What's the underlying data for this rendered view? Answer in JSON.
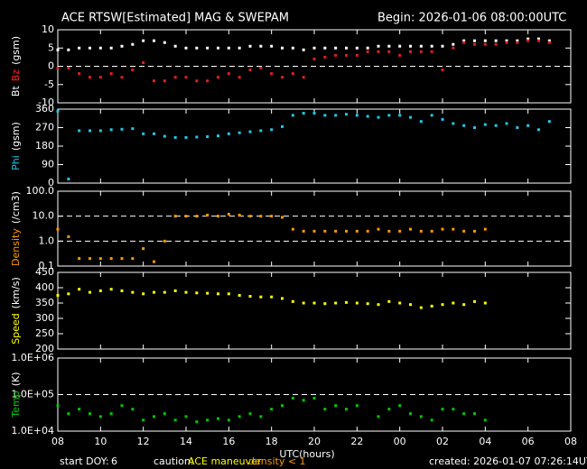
{
  "header": {
    "title": "ACE RTSW[Estimated] MAG & SWEPAM",
    "begin": "Begin: 2026-01-06 08:00:00UTC"
  },
  "xaxis": {
    "label": "UTC(hours)",
    "xlim": [
      0,
      24
    ],
    "xticks": [
      {
        "value": 0,
        "label": "08"
      },
      {
        "value": 2,
        "label": "10"
      },
      {
        "value": 4,
        "label": "12"
      },
      {
        "value": 6,
        "label": "14"
      },
      {
        "value": 8,
        "label": "16"
      },
      {
        "value": 10,
        "label": "18"
      },
      {
        "value": 12,
        "label": "20"
      },
      {
        "value": 14,
        "label": "22"
      },
      {
        "value": 16,
        "label": "00"
      },
      {
        "value": 18,
        "label": "02"
      },
      {
        "value": 20,
        "label": "04"
      },
      {
        "value": 22,
        "label": "06"
      },
      {
        "value": 24,
        "label": "08"
      }
    ]
  },
  "footer": {
    "doy_label": "start DOY:",
    "doy": "6",
    "caution": "caution:",
    "maneuver": "ACE maneuver",
    "density_note": "density < 1",
    "created": "created: 2026-01-07 07:26:14UTC"
  },
  "chart_data": [
    {
      "type": "scatter",
      "ylabel": [
        {
          "text": "Bt",
          "color": "#ffffff"
        },
        {
          "text": "Bz",
          "color": "#ff2020"
        },
        {
          "text": "(gsm)",
          "color": "#ffffff"
        }
      ],
      "x": [
        0,
        0.5,
        1,
        1.5,
        2,
        2.5,
        3,
        3.5,
        4,
        4.5,
        5,
        5.5,
        6,
        6.5,
        7,
        7.5,
        8,
        8.5,
        9,
        9.5,
        10,
        10.5,
        11,
        11.5,
        12,
        12.5,
        13,
        13.5,
        14,
        14.5,
        15,
        15.5,
        16,
        16.5,
        17,
        17.5,
        18,
        18.5,
        19,
        19.5,
        20,
        20.5,
        21,
        21.5,
        22,
        22.5,
        23
      ],
      "series": [
        {
          "name": "Bt",
          "color": "#ffffff",
          "values": [
            4.5,
            4.5,
            5,
            5,
            5,
            5,
            5.5,
            6,
            7,
            7,
            6.5,
            5.5,
            5,
            5,
            5,
            5,
            5,
            5,
            5.5,
            5.5,
            5.5,
            5,
            5,
            4.5,
            5,
            5,
            5,
            5,
            5,
            5,
            5.5,
            5.5,
            5.5,
            5.5,
            5.5,
            5.5,
            5.5,
            6,
            7,
            7,
            7,
            7,
            7,
            7,
            7.5,
            7.5,
            7
          ]
        },
        {
          "name": "Bz",
          "color": "#e02020",
          "values": [
            -0.5,
            -0.5,
            -2,
            -3,
            -3,
            -2,
            -3,
            -1,
            1,
            -4,
            -4,
            -3,
            -3,
            -4,
            -4,
            -3,
            -2,
            -3,
            -1,
            -0.5,
            -2,
            -3,
            -2,
            -3,
            2,
            2.5,
            3,
            3,
            3,
            4,
            4,
            4,
            3,
            4,
            4,
            4,
            -1,
            5,
            6.5,
            6,
            6,
            6,
            6.5,
            6.5,
            7,
            7,
            6.5
          ]
        }
      ],
      "ylim": [
        -10,
        10
      ],
      "yticks": [
        -10,
        -5,
        0,
        5,
        10
      ],
      "log": false,
      "reference_lines": [
        0
      ]
    },
    {
      "type": "scatter",
      "ylabel": [
        {
          "text": "Phi",
          "color": "#20c8e8"
        },
        {
          "text": "(gsm)",
          "color": "#ffffff"
        }
      ],
      "x": [
        0,
        0.5,
        1,
        1.5,
        2,
        2.5,
        3,
        3.5,
        4,
        4.5,
        5,
        5.5,
        6,
        6.5,
        7,
        7.5,
        8,
        8.5,
        9,
        9.5,
        10,
        10.5,
        11,
        11.5,
        12,
        12.5,
        13,
        13.5,
        14,
        14.5,
        15,
        15.5,
        16,
        16.5,
        17,
        17.5,
        18,
        18.5,
        19,
        19.5,
        20,
        20.5,
        21,
        21.5,
        22,
        22.5,
        23
      ],
      "series": [
        {
          "name": "Phi",
          "color": "#20c8e8",
          "values": [
            350,
            20,
            255,
            255,
            255,
            260,
            262,
            265,
            240,
            240,
            228,
            222,
            222,
            224,
            226,
            230,
            240,
            245,
            250,
            255,
            260,
            275,
            330,
            340,
            340,
            330,
            330,
            335,
            330,
            325,
            320,
            330,
            330,
            320,
            300,
            330,
            310,
            290,
            280,
            270,
            285,
            280,
            290,
            270,
            280,
            260,
            300
          ]
        }
      ],
      "ylim": [
        0,
        360
      ],
      "yticks": [
        0,
        90,
        180,
        270,
        360
      ],
      "log": false,
      "reference_lines": []
    },
    {
      "type": "scatter",
      "ylabel": [
        {
          "text": "Density",
          "color": "#ff9900"
        },
        {
          "text": "(/cm3)",
          "color": "#ffffff"
        }
      ],
      "x": [
        0,
        0.5,
        1,
        1.5,
        2,
        2.5,
        3,
        3.5,
        4,
        4.5,
        5,
        5.5,
        6,
        6.5,
        7,
        7.5,
        8,
        8.5,
        9,
        9.5,
        10,
        10.5,
        11,
        11.5,
        12,
        12.5,
        13,
        13.5,
        14,
        14.5,
        15,
        15.5,
        16,
        16.5,
        17,
        17.5,
        18,
        18.5,
        19,
        19.5,
        20
      ],
      "series": [
        {
          "name": "Density",
          "color": "#ff9900",
          "values": [
            3,
            1.5,
            0.2,
            0.2,
            0.2,
            0.2,
            0.2,
            0.2,
            0.5,
            0.15,
            1,
            10,
            10,
            10,
            11,
            10,
            12,
            11,
            10,
            10,
            10,
            9,
            3,
            2.5,
            2.5,
            2.5,
            2.5,
            2.5,
            2.5,
            2.5,
            3,
            2.5,
            2.5,
            3,
            2.5,
            2.5,
            3,
            3,
            2.5,
            2.5,
            3
          ]
        }
      ],
      "ylim": [
        0.1,
        100
      ],
      "yticks": [
        0.1,
        {
          "value": 1,
          "label": "1.0"
        },
        {
          "value": 10,
          "label": "10.0"
        },
        {
          "value": 100,
          "label": "100.0"
        }
      ],
      "log": true,
      "reference_lines": [
        1,
        10
      ]
    },
    {
      "type": "scatter",
      "ylabel": [
        {
          "text": "Speed",
          "color": "#ffff00"
        },
        {
          "text": "(km/s)",
          "color": "#ffffff"
        }
      ],
      "x": [
        0,
        0.5,
        1,
        1.5,
        2,
        2.5,
        3,
        3.5,
        4,
        4.5,
        5,
        5.5,
        6,
        6.5,
        7,
        7.5,
        8,
        8.5,
        9,
        9.5,
        10,
        10.5,
        11,
        11.5,
        12,
        12.5,
        13,
        13.5,
        14,
        14.5,
        15,
        15.5,
        16,
        16.5,
        17,
        17.5,
        18,
        18.5,
        19,
        19.5,
        20
      ],
      "series": [
        {
          "name": "Speed",
          "color": "#ffff00",
          "values": [
            375,
            380,
            395,
            385,
            390,
            395,
            390,
            385,
            380,
            385,
            385,
            390,
            385,
            383,
            382,
            380,
            380,
            375,
            372,
            370,
            370,
            365,
            355,
            350,
            350,
            348,
            350,
            352,
            350,
            348,
            345,
            355,
            350,
            345,
            335,
            340,
            345,
            350,
            345,
            355,
            350
          ]
        }
      ],
      "ylim": [
        200,
        450
      ],
      "yticks": [
        200,
        250,
        300,
        350,
        400,
        450
      ],
      "log": false,
      "reference_lines": []
    },
    {
      "type": "scatter",
      "ylabel": [
        {
          "text": "Temp",
          "color": "#00d000"
        },
        {
          "text": "(K)",
          "color": "#ffffff"
        }
      ],
      "x": [
        0,
        0.5,
        1,
        1.5,
        2,
        2.5,
        3,
        3.5,
        4,
        4.5,
        5,
        5.5,
        6,
        6.5,
        7,
        7.5,
        8,
        8.5,
        9,
        9.5,
        10,
        10.5,
        11,
        11.5,
        12,
        12.5,
        13,
        13.5,
        14,
        14.5,
        15,
        15.5,
        16,
        16.5,
        17,
        17.5,
        18,
        18.5,
        19,
        19.5,
        20
      ],
      "series": [
        {
          "name": "Temp",
          "color": "#00c800",
          "values": [
            50000,
            30000,
            40000,
            30000,
            25000,
            30000,
            50000,
            40000,
            20000,
            25000,
            30000,
            20000,
            25000,
            18000,
            20000,
            22000,
            20000,
            25000,
            30000,
            25000,
            40000,
            50000,
            80000,
            70000,
            80000,
            40000,
            50000,
            40000,
            50000,
            null,
            25000,
            40000,
            50000,
            30000,
            25000,
            20000,
            40000,
            40000,
            30000,
            30000,
            20000
          ]
        }
      ],
      "ylim": [
        10000,
        1000000
      ],
      "yticks": [
        {
          "value": 10000,
          "label": "1.0E+04"
        },
        {
          "value": 100000,
          "label": "1.0E+05"
        },
        {
          "value": 1000000,
          "label": "1.0E+06"
        }
      ],
      "log": true,
      "reference_lines": [
        100000
      ]
    }
  ]
}
